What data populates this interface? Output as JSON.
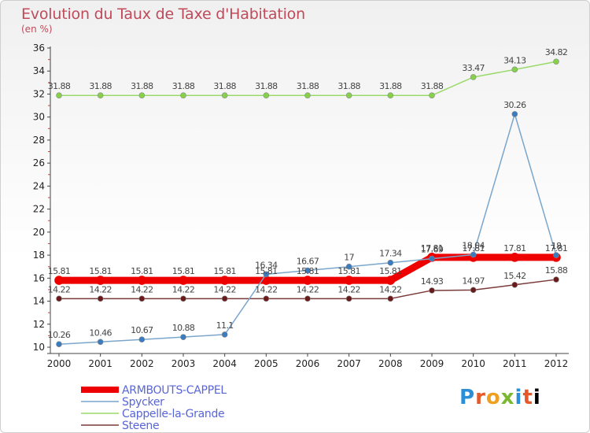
{
  "chart_data": {
    "type": "line",
    "title": "Evolution du Taux de Taxe d'Habitation",
    "unit_label": "(en %)",
    "x": [
      "2000",
      "2001",
      "2002",
      "2003",
      "2004",
      "2005",
      "2006",
      "2007",
      "2008",
      "2009",
      "2010",
      "2011",
      "2012"
    ],
    "ylim": [
      10,
      36
    ],
    "yticks": [
      10,
      12,
      14,
      16,
      18,
      20,
      22,
      24,
      26,
      28,
      30,
      32,
      34,
      36
    ],
    "grid": false,
    "legend_position": "bottom-left",
    "series": [
      {
        "name": "ARMBOUTS-CAPPEL",
        "color": "#ee0000",
        "values": [
          15.81,
          15.81,
          15.81,
          15.81,
          15.81,
          15.81,
          15.81,
          15.81,
          15.81,
          17.81,
          17.81,
          17.81,
          17.81
        ],
        "labels": [
          "15.81",
          "15.81",
          "15.81",
          "15.81",
          "15.81",
          "15.81",
          "15.81",
          "15.81",
          "15.81",
          "17.81",
          "17.81",
          "17.81",
          "17.81"
        ]
      },
      {
        "name": "Spycker",
        "color": "#7aa6cc",
        "values": [
          10.26,
          10.46,
          10.67,
          10.88,
          11.1,
          16.34,
          16.67,
          17,
          17.34,
          17.69,
          18.04,
          30.26,
          18
        ],
        "labels": [
          "10.26",
          "10.46",
          "10.67",
          "10.88",
          "11.1",
          "16.34",
          "16.67",
          "17",
          "17.34",
          "17.69",
          "18.04",
          "30.26",
          "18"
        ]
      },
      {
        "name": "Cappelle-la-Grande",
        "color": "#9ada6a",
        "values": [
          31.88,
          31.88,
          31.88,
          31.88,
          31.88,
          31.88,
          31.88,
          31.88,
          31.88,
          31.88,
          33.47,
          34.13,
          34.82
        ],
        "labels": [
          "31.88",
          "31.88",
          "31.88",
          "31.88",
          "31.88",
          "31.88",
          "31.88",
          "31.88",
          "31.88",
          "31.88",
          "33.47",
          "34.13",
          "34.82"
        ]
      },
      {
        "name": "Steene",
        "color": "#7a3a3a",
        "values": [
          14.22,
          14.22,
          14.22,
          14.22,
          14.22,
          14.22,
          14.22,
          14.22,
          14.22,
          14.93,
          14.97,
          15.42,
          15.88
        ],
        "labels": [
          "14.22",
          "14.22",
          "14.22",
          "14.22",
          "14.22",
          "14.22",
          "14.22",
          "14.22",
          "14.22",
          "14.93",
          "14.97",
          "15.42",
          "15.88"
        ]
      }
    ]
  },
  "logo_text": "Proxiti"
}
